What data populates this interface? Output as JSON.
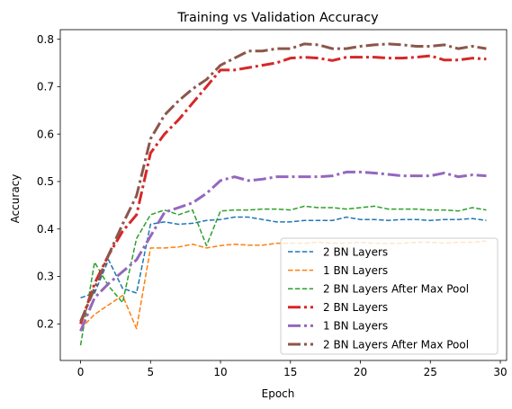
{
  "chart_data": {
    "type": "line",
    "title": "Training vs Validation Accuracy",
    "xlabel": "Epoch",
    "ylabel": "Accuracy",
    "xlim": [
      -1.45,
      30.45
    ],
    "ylim": [
      0.123,
      0.82
    ],
    "xticks": [
      0,
      5,
      10,
      15,
      20,
      25,
      30
    ],
    "yticks": [
      0.2,
      0.3,
      0.4,
      0.5,
      0.6,
      0.7,
      0.8
    ],
    "grid": false,
    "legend_position": "lower-right",
    "x": [
      0,
      1,
      2,
      3,
      4,
      5,
      6,
      7,
      8,
      9,
      10,
      11,
      12,
      13,
      14,
      15,
      16,
      17,
      18,
      19,
      20,
      21,
      22,
      23,
      24,
      25,
      26,
      27,
      28,
      29
    ],
    "series": [
      {
        "name": "2 BN Layers",
        "color": "#1f77b4",
        "style": "dashed",
        "values": [
          0.255,
          0.265,
          0.335,
          0.275,
          0.265,
          0.41,
          0.415,
          0.41,
          0.412,
          0.418,
          0.42,
          0.425,
          0.425,
          0.42,
          0.415,
          0.415,
          0.418,
          0.418,
          0.418,
          0.425,
          0.42,
          0.42,
          0.418,
          0.42,
          0.42,
          0.418,
          0.42,
          0.42,
          0.422,
          0.418
        ]
      },
      {
        "name": "1 BN Layers",
        "color": "#ff7f0e",
        "style": "dashed",
        "values": [
          0.19,
          0.22,
          0.24,
          0.26,
          0.19,
          0.36,
          0.36,
          0.362,
          0.368,
          0.36,
          0.365,
          0.368,
          0.366,
          0.366,
          0.37,
          0.37,
          0.37,
          0.372,
          0.37,
          0.37,
          0.372,
          0.37,
          0.37,
          0.37,
          0.372,
          0.372,
          0.37,
          0.372,
          0.372,
          0.375
        ]
      },
      {
        "name": "2 BN Layers After Max Pool",
        "color": "#2ca02c",
        "style": "dashed",
        "values": [
          0.155,
          0.33,
          0.28,
          0.245,
          0.38,
          0.43,
          0.44,
          0.43,
          0.44,
          0.365,
          0.438,
          0.44,
          0.44,
          0.442,
          0.442,
          0.44,
          0.448,
          0.445,
          0.445,
          0.442,
          0.445,
          0.448,
          0.442,
          0.442,
          0.442,
          0.44,
          0.44,
          0.438,
          0.445,
          0.44
        ]
      },
      {
        "name": "2 BN Layers",
        "color": "#d62728",
        "style": "dashdot",
        "values": [
          0.2,
          0.285,
          0.345,
          0.395,
          0.43,
          0.56,
          0.6,
          0.63,
          0.665,
          0.7,
          0.735,
          0.735,
          0.74,
          0.745,
          0.75,
          0.76,
          0.762,
          0.76,
          0.755,
          0.762,
          0.762,
          0.762,
          0.76,
          0.76,
          0.762,
          0.765,
          0.756,
          0.756,
          0.76,
          0.758
        ]
      },
      {
        "name": "1 BN Layers",
        "color": "#9467bd",
        "style": "dashdot",
        "values": [
          0.185,
          0.255,
          0.285,
          0.31,
          0.335,
          0.385,
          0.435,
          0.445,
          0.455,
          0.475,
          0.502,
          0.51,
          0.502,
          0.505,
          0.51,
          0.51,
          0.51,
          0.51,
          0.512,
          0.52,
          0.52,
          0.518,
          0.515,
          0.512,
          0.512,
          0.512,
          0.518,
          0.51,
          0.514,
          0.512
        ]
      },
      {
        "name": "2 BN Layers After Max Pool",
        "color": "#8c564b",
        "style": "dashdot",
        "values": [
          0.205,
          0.275,
          0.345,
          0.41,
          0.47,
          0.59,
          0.64,
          0.67,
          0.695,
          0.715,
          0.745,
          0.76,
          0.775,
          0.775,
          0.78,
          0.78,
          0.79,
          0.788,
          0.78,
          0.78,
          0.785,
          0.788,
          0.79,
          0.788,
          0.785,
          0.785,
          0.788,
          0.78,
          0.785,
          0.78
        ]
      }
    ]
  }
}
